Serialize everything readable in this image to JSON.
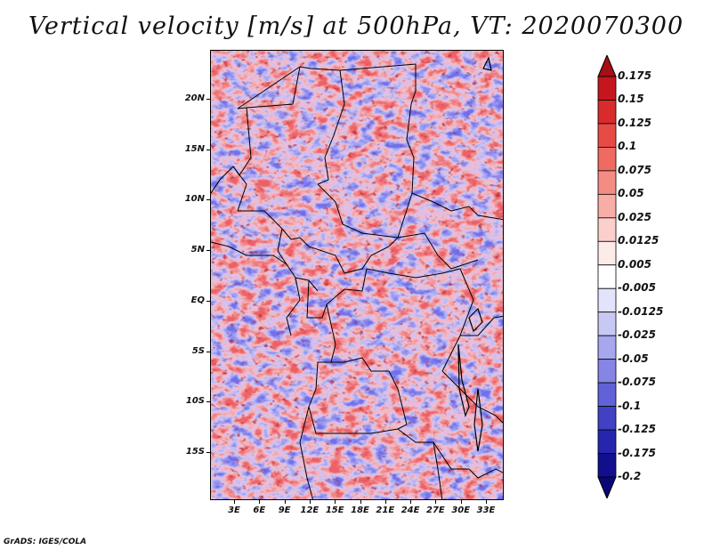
{
  "title": "Vertical velocity [m/s] at 500hPa, VT: 2020070300",
  "credit": "GrADS: IGES/COLA",
  "map": {
    "lat_labels": [
      "20N",
      "15N",
      "10N",
      "5N",
      "EQ",
      "5S",
      "10S",
      "15S"
    ],
    "lon_labels": [
      "3E",
      "6E",
      "9E",
      "12E",
      "15E",
      "18E",
      "21E",
      "24E",
      "27E",
      "30E",
      "33E"
    ],
    "colors": {
      "positive": "#e8353a",
      "negative": "#4a4ae8",
      "border": "#000000"
    }
  },
  "colorbar": {
    "labels": [
      "0.175",
      "0.15",
      "0.125",
      "0.1",
      "0.075",
      "0.05",
      "0.025",
      "0.0125",
      "0.005",
      "-0.005",
      "-0.0125",
      "-0.025",
      "-0.05",
      "-0.075",
      "-0.1",
      "-0.125",
      "-0.175",
      "-0.2"
    ],
    "colors": [
      "#a50f15",
      "#c4161c",
      "#d92a2c",
      "#e84a46",
      "#ef6b62",
      "#f48c84",
      "#f8aea7",
      "#fbd0cc",
      "#fdebe9",
      "#ffffff",
      "#e3e3fb",
      "#c8c8f5",
      "#a7a7ef",
      "#8585e6",
      "#6262d8",
      "#4141c6",
      "#2525ad",
      "#120f8f",
      "#0a0678"
    ]
  }
}
